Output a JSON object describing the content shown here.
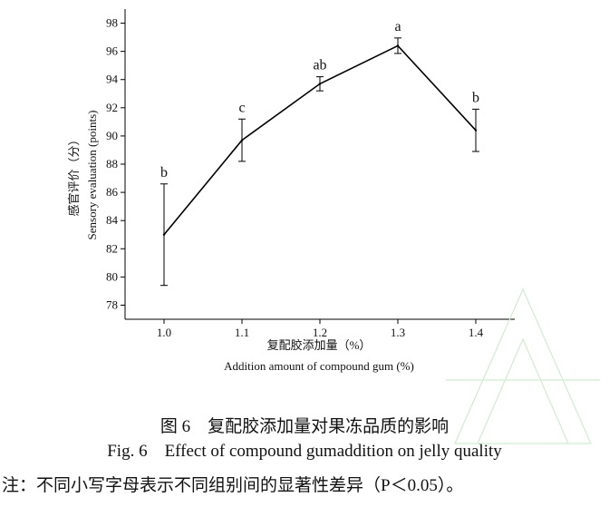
{
  "caption": {
    "zh": "图 6　复配胶添加量对果冻品质的影响",
    "en": "Fig. 6　Effect of compound gumaddition on jelly quality"
  },
  "note": "注：不同小写字母表示不同组别间的显著性差异（P＜0.05）。",
  "chart_data": {
    "type": "line",
    "xlabel_zh": "复配胶添加量（%）",
    "xlabel_en": "Addition amount of compound gum (%)",
    "ylabel_zh": "感官评价（分）",
    "ylabel_en": "Sensory evaluation (points)",
    "categories": [
      "1.0",
      "1.1",
      "1.2",
      "1.3",
      "1.4"
    ],
    "x": [
      1.0,
      1.1,
      1.2,
      1.3,
      1.4
    ],
    "y": [
      83.0,
      89.7,
      93.7,
      96.4,
      90.4
    ],
    "error": [
      3.6,
      1.5,
      0.5,
      0.55,
      1.5
    ],
    "significance": [
      "b",
      "c",
      "ab",
      "a",
      "b"
    ],
    "yticks": [
      78,
      80,
      82,
      84,
      86,
      88,
      90,
      92,
      94,
      96,
      98
    ],
    "ylim": [
      77,
      99
    ],
    "xlim": [
      0.95,
      1.45
    ],
    "line_color": "#000000"
  }
}
